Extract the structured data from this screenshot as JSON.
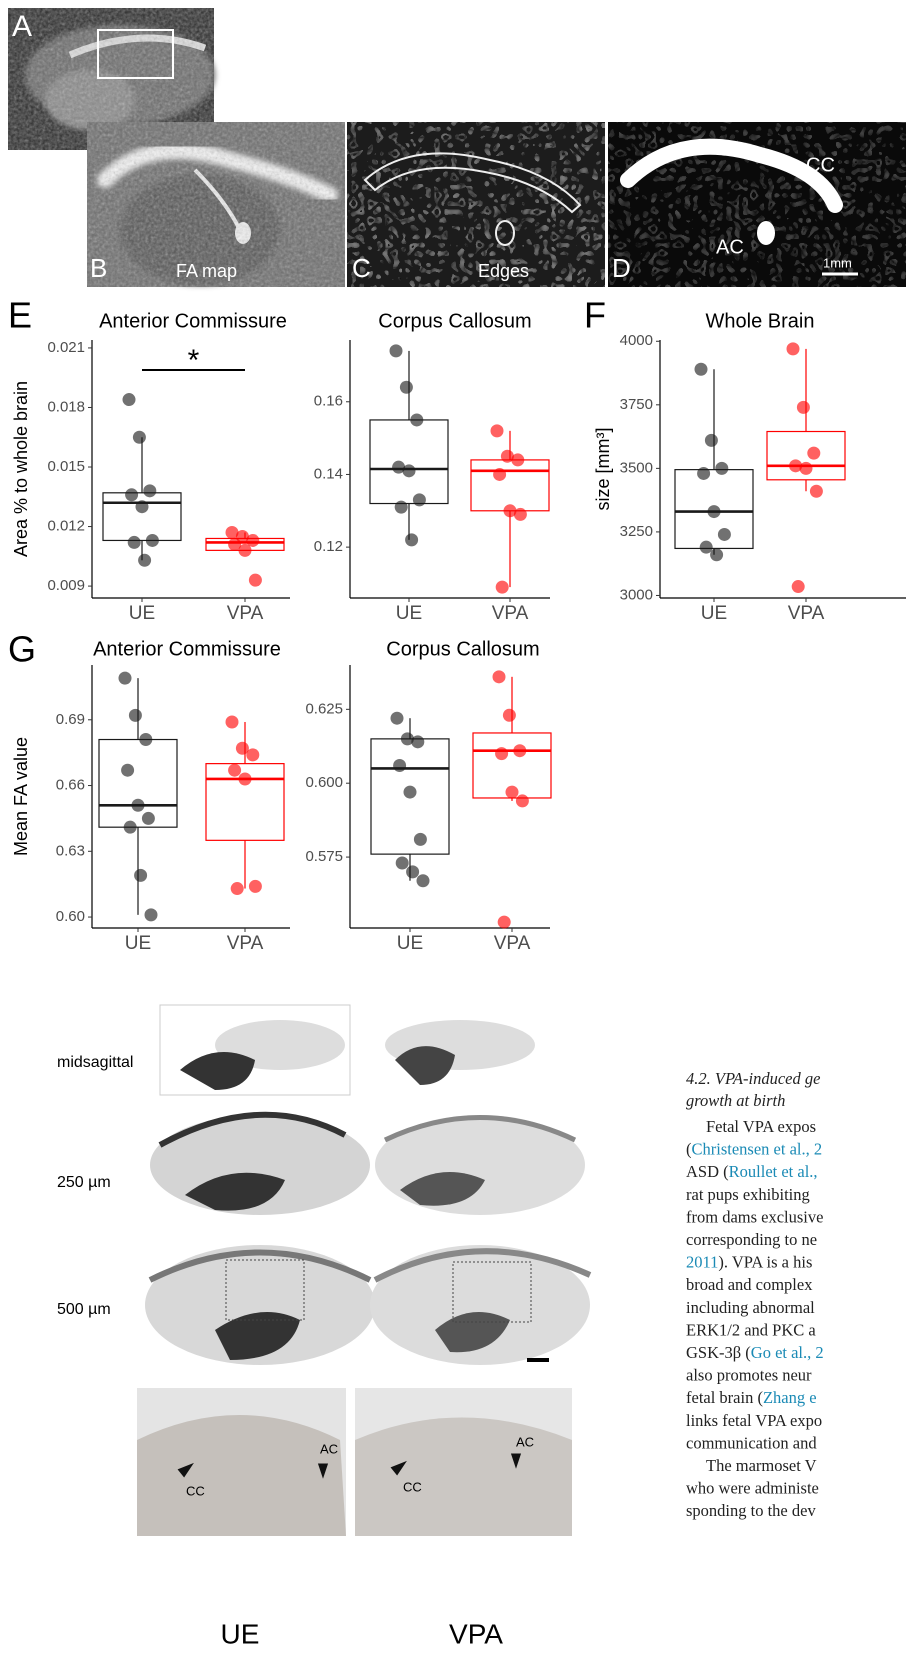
{
  "panel_labels": [
    "A",
    "B",
    "C",
    "D",
    "E",
    "F",
    "G"
  ],
  "mri": {
    "b_caption": "FA map",
    "c_caption": "Edges",
    "d_cc": "CC",
    "d_ac": "AC",
    "scale": "1mm"
  },
  "chart_data": [
    {
      "type": "box",
      "title": "Anterior Commissure",
      "ylabel": "Area % to whole brain",
      "categories": [
        "UE",
        "VPA"
      ],
      "ylim": [
        0.0084,
        0.0214
      ],
      "yticks": [
        0.009,
        0.012,
        0.015,
        0.018,
        0.021
      ],
      "significance": "*",
      "boxes": [
        {
          "color": "#1a1a1a",
          "low": 0.0103,
          "q1": 0.0113,
          "median": 0.0132,
          "q3": 0.0137,
          "high": 0.0165,
          "points": [
            0.0184,
            0.0165,
            0.0138,
            0.0136,
            0.013,
            0.0113,
            0.0112,
            0.0103
          ]
        },
        {
          "color": "#ff0000",
          "low": 0.0108,
          "q1": 0.0108,
          "median": 0.0112,
          "q3": 0.0114,
          "high": 0.0117,
          "points": [
            0.0117,
            0.0115,
            0.0113,
            0.0111,
            0.0108,
            0.0093
          ]
        }
      ]
    },
    {
      "type": "box",
      "title": "Corpus Callosum",
      "categories": [
        "UE",
        "VPA"
      ],
      "ylim": [
        0.106,
        0.177
      ],
      "yticks": [
        0.12,
        0.14,
        0.16
      ],
      "boxes": [
        {
          "color": "#1a1a1a",
          "low": 0.122,
          "q1": 0.132,
          "median": 0.1415,
          "q3": 0.155,
          "high": 0.174,
          "points": [
            0.174,
            0.164,
            0.155,
            0.142,
            0.141,
            0.133,
            0.131,
            0.122
          ]
        },
        {
          "color": "#ff0000",
          "low": 0.109,
          "q1": 0.13,
          "median": 0.141,
          "q3": 0.144,
          "high": 0.152,
          "points": [
            0.152,
            0.145,
            0.144,
            0.14,
            0.13,
            0.129,
            0.109
          ]
        }
      ]
    },
    {
      "type": "box",
      "title": "Whole Brain",
      "ylabel": "size [mm³]",
      "categories": [
        "UE",
        "VPA"
      ],
      "ylim": [
        2990,
        4005
      ],
      "yticks": [
        3000,
        3250,
        3500,
        3750,
        4000
      ],
      "boxes": [
        {
          "color": "#1a1a1a",
          "low": 3160,
          "q1": 3185,
          "median": 3330,
          "q3": 3495,
          "high": 3890,
          "points": [
            3890,
            3610,
            3500,
            3480,
            3330,
            3240,
            3190,
            3160
          ]
        },
        {
          "color": "#ff0000",
          "low": 3410,
          "q1": 3455,
          "median": 3510,
          "q3": 3645,
          "high": 3970,
          "points": [
            3970,
            3740,
            3560,
            3510,
            3500,
            3410,
            3035
          ]
        }
      ]
    },
    {
      "type": "box",
      "title": "Anterior Commissure",
      "ylabel": "Mean FA value",
      "categories": [
        "UE",
        "VPA"
      ],
      "ylim": [
        0.595,
        0.715
      ],
      "yticks": [
        {
          "value": 0.6,
          "label": "0.60"
        },
        0.63,
        0.66,
        0.69
      ],
      "boxes": [
        {
          "color": "#1a1a1a",
          "low": 0.601,
          "q1": 0.641,
          "median": 0.651,
          "q3": 0.681,
          "high": 0.709,
          "points": [
            0.709,
            0.692,
            0.681,
            0.667,
            0.651,
            0.645,
            0.641,
            0.619,
            0.601
          ]
        },
        {
          "color": "#ff0000",
          "low": 0.613,
          "q1": 0.635,
          "median": 0.663,
          "q3": 0.67,
          "high": 0.689,
          "points": [
            0.689,
            0.677,
            0.674,
            0.667,
            0.663,
            0.614,
            0.613
          ]
        }
      ]
    },
    {
      "type": "box",
      "title": "Corpus Callosum",
      "categories": [
        "UE",
        "VPA"
      ],
      "ylim": [
        0.551,
        0.64
      ],
      "yticks": [
        0.575,
        {
          "value": 0.6,
          "label": "0.600"
        },
        0.625
      ],
      "boxes": [
        {
          "color": "#1a1a1a",
          "low": 0.567,
          "q1": 0.576,
          "median": 0.605,
          "q3": 0.615,
          "high": 0.622,
          "points": [
            0.622,
            0.615,
            0.614,
            0.606,
            0.597,
            0.581,
            0.573,
            0.57,
            0.567
          ]
        },
        {
          "color": "#ff0000",
          "low": 0.594,
          "q1": 0.595,
          "median": 0.611,
          "q3": 0.617,
          "high": 0.636,
          "points": [
            0.636,
            0.623,
            0.611,
            0.61,
            0.597,
            0.594,
            0.553
          ]
        }
      ]
    }
  ],
  "histology": {
    "rows": [
      "midsagittal",
      "250 µm",
      "500 µm"
    ],
    "groups": [
      "UE",
      "VPA"
    ],
    "zoom_labels": [
      "CC",
      "AC",
      "CC",
      "AC"
    ]
  },
  "text": {
    "heading": [
      "4.2.  VPA-induced ge",
      "growth at birth"
    ],
    "lines": [
      [
        {
          "text": "Fetal VPA expos"
        }
      ],
      [
        {
          "text": "("
        },
        {
          "text": "Christensen et al., 2",
          "color": "#1a8ab5"
        }
      ],
      [
        {
          "text": "ASD ("
        },
        {
          "text": "Roullet et al.,",
          "color": "#1a8ab5"
        }
      ],
      [
        {
          "text": "rat pups exhibiting"
        }
      ],
      [
        {
          "text": "from dams exclusive"
        }
      ],
      [
        {
          "text": "corresponding to ne"
        }
      ],
      [
        {
          "text": "2011",
          "color": "#1a8ab5"
        },
        {
          "text": "). VPA is a his"
        }
      ],
      [
        {
          "text": "broad and complex"
        }
      ],
      [
        {
          "text": "including abnormal"
        }
      ],
      [
        {
          "text": "ERK1/2 and PKC a"
        }
      ],
      [
        {
          "text": "GSK-3β ("
        },
        {
          "text": "Go et al., 2",
          "color": "#1a8ab5"
        }
      ],
      [
        {
          "text": "also promotes neur"
        }
      ],
      [
        {
          "text": "fetal brain ("
        },
        {
          "text": "Zhang e",
          "color": "#1a8ab5"
        }
      ],
      [
        {
          "text": "links fetal VPA expo"
        }
      ],
      [
        {
          "text": "communication and"
        }
      ],
      [
        {
          "text": "The marmoset V"
        }
      ],
      [
        {
          "text": "who were administe"
        }
      ],
      [
        {
          "text": "sponding to the dev"
        }
      ]
    ],
    "indented": [
      0,
      15
    ]
  }
}
